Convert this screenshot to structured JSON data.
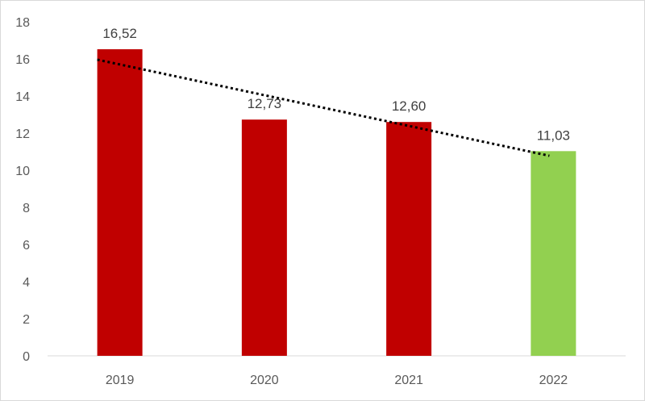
{
  "chart_data": {
    "type": "bar",
    "categories": [
      "2019",
      "2020",
      "2021",
      "2022"
    ],
    "values": [
      16.52,
      12.73,
      12.6,
      11.03
    ],
    "data_labels": [
      "16,52",
      "12,73",
      "12,60",
      "11,03"
    ],
    "bar_colors": [
      "#c00000",
      "#c00000",
      "#c00000",
      "#92d050"
    ],
    "ylim": [
      0,
      18
    ],
    "yticks": [
      0,
      2,
      4,
      6,
      8,
      10,
      12,
      14,
      16,
      18
    ],
    "trendline": {
      "type": "linear",
      "style": "dotted",
      "color": "#000000"
    },
    "grid": false,
    "title": "",
    "xlabel": "",
    "ylabel": ""
  }
}
